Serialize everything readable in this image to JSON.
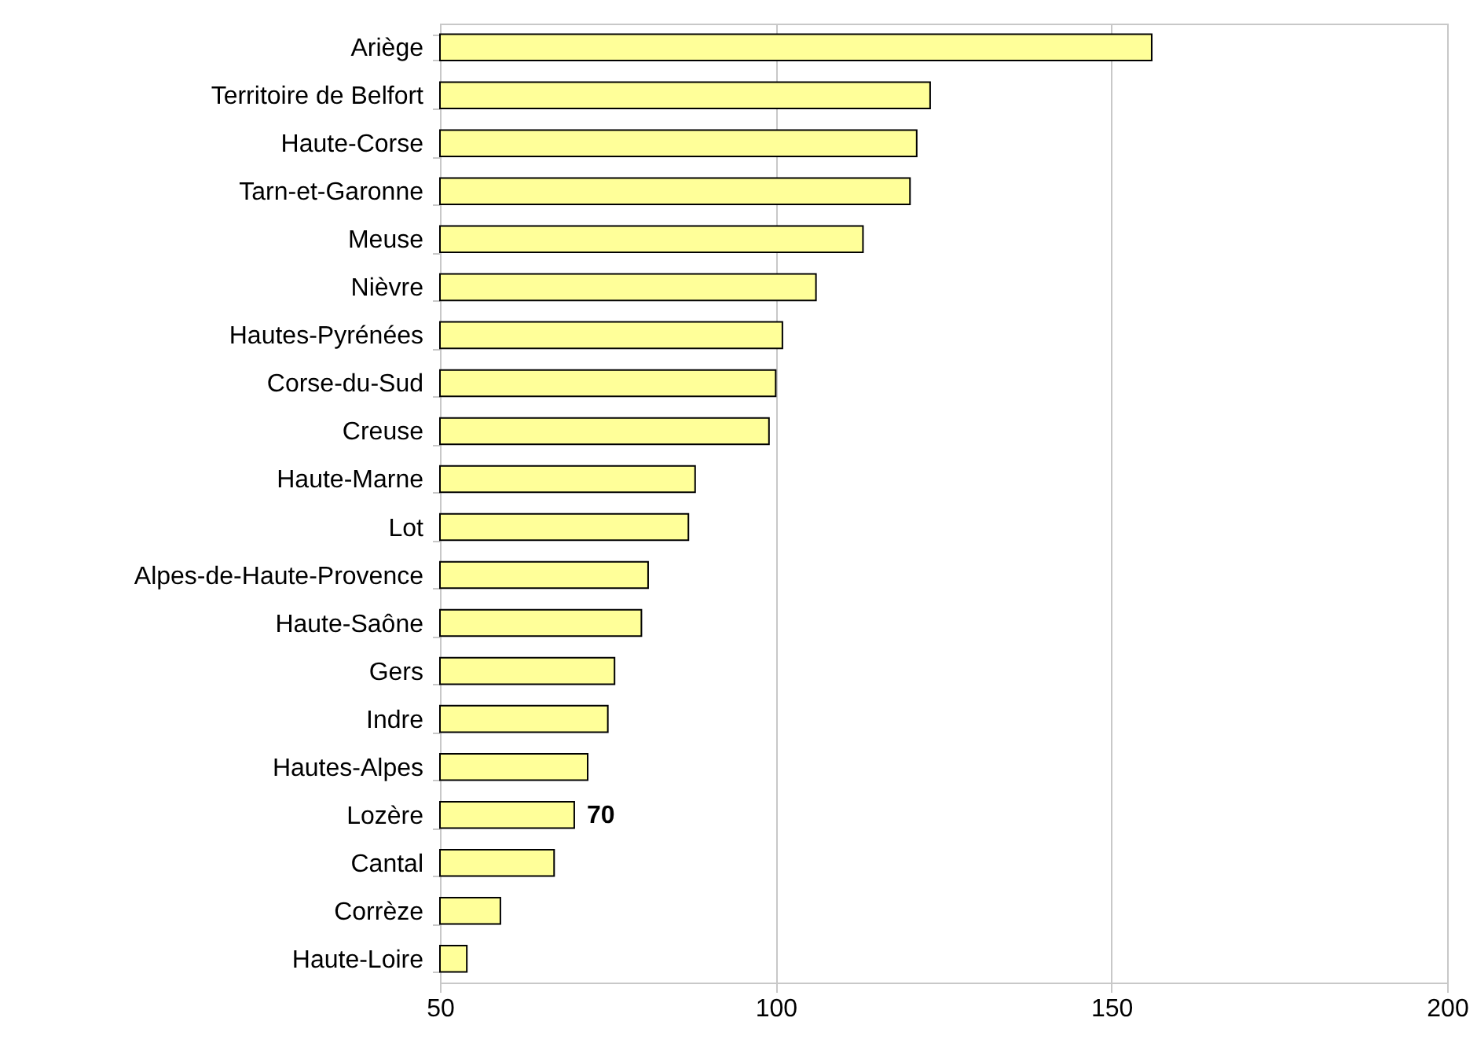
{
  "chart_data": {
    "type": "bar",
    "orientation": "horizontal",
    "categories": [
      "Ariège",
      "Territoire de Belfort",
      "Haute-Corse",
      "Tarn-et-Garonne",
      "Meuse",
      "Nièvre",
      "Hautes-Pyrénées",
      "Corse-du-Sud",
      "Creuse",
      "Haute-Marne",
      "Lot",
      "Alpes-de-Haute-Provence",
      "Haute-Saône",
      "Gers",
      "Indre",
      "Hautes-Alpes",
      "Lozère",
      "Cantal",
      "Corrèze",
      "Haute-Loire"
    ],
    "values": [
      156,
      123,
      121,
      120,
      113,
      106,
      101,
      100,
      99,
      88,
      87,
      81,
      80,
      76,
      75,
      72,
      70,
      67,
      59,
      54
    ],
    "value_labels": [
      null,
      null,
      null,
      null,
      null,
      null,
      null,
      null,
      null,
      null,
      null,
      null,
      null,
      null,
      null,
      null,
      "70",
      null,
      null,
      null
    ],
    "color": "#ffff99",
    "xlim": [
      50,
      200
    ],
    "xticks": [
      50,
      100,
      150,
      200
    ],
    "grid": "x"
  }
}
